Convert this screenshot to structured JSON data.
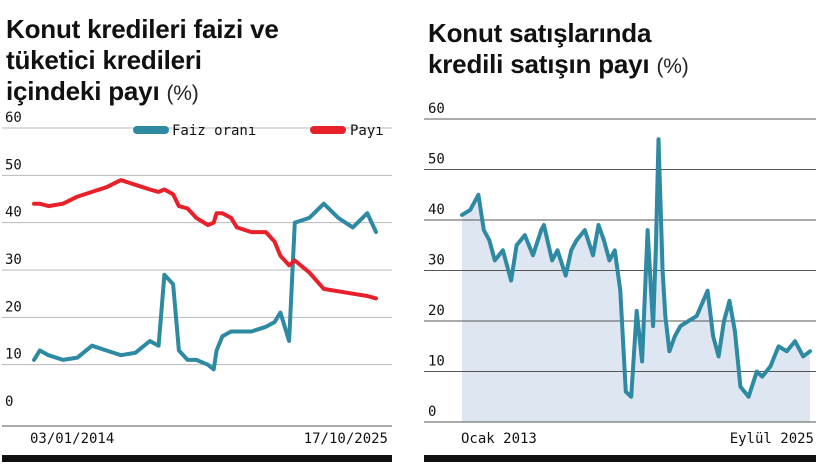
{
  "chart_data": [
    {
      "type": "line",
      "title": "Konut kredileri faizi ve tüketici kredileri içindeki payı",
      "title_lines": [
        "Konut kredileri faizi ve",
        "tüketici kredileri",
        "içindeki payı"
      ],
      "unit": "(%)",
      "x_labels": [
        "03/01/2014",
        "17/10/2025"
      ],
      "y_ticks": [
        "60",
        "50",
        "40",
        "30",
        "20",
        "10",
        "0"
      ],
      "ylim": [
        0,
        60
      ],
      "grid": true,
      "legend_position": "top-right",
      "x": [
        2014.0,
        2014.2,
        2014.5,
        2015.0,
        2015.5,
        2016.0,
        2016.5,
        2017.0,
        2017.5,
        2018.0,
        2018.3,
        2018.5,
        2018.8,
        2019.0,
        2019.3,
        2019.6,
        2020.0,
        2020.2,
        2020.3,
        2020.5,
        2020.8,
        2021.0,
        2021.5,
        2022.0,
        2022.3,
        2022.5,
        2022.8,
        2023.0,
        2023.5,
        2024.0,
        2024.5,
        2025.0,
        2025.5,
        2025.8
      ],
      "series": [
        {
          "name": "Faiz oranı",
          "color": "#2e8aa3",
          "values": [
            11,
            13,
            12,
            11,
            11.5,
            14,
            13,
            12,
            12.5,
            15,
            14,
            29,
            27,
            13,
            11,
            11,
            10,
            9,
            13,
            16,
            17,
            17,
            17,
            18,
            19,
            21,
            15,
            40,
            41,
            44,
            41,
            39,
            42,
            38
          ]
        },
        {
          "name": "Payı",
          "color": "#e8202a",
          "values": [
            44,
            44,
            43.5,
            44,
            45.5,
            46.5,
            47.5,
            49,
            48,
            47,
            46.5,
            47,
            46,
            43.5,
            43,
            41,
            39.5,
            40,
            42,
            42,
            41,
            39,
            38,
            38,
            36,
            33,
            31,
            32,
            29.5,
            26,
            25.5,
            25,
            24.5,
            24
          ]
        }
      ]
    },
    {
      "type": "area",
      "title": "Konut satışlarında kredili satışın payı",
      "title_lines": [
        "Konut satışlarında",
        "kredili satışın payı"
      ],
      "unit": "(%)",
      "x_labels": [
        "Ocak 2013",
        "Eylül 2025"
      ],
      "y_ticks": [
        "60",
        "50",
        "40",
        "30",
        "20",
        "10",
        "0"
      ],
      "ylim": [
        0,
        60
      ],
      "grid": true,
      "colors": {
        "line": "#2e8aa3",
        "fill": "#dde6f1"
      },
      "x": [
        2013.0,
        2013.3,
        2013.6,
        2013.8,
        2014.0,
        2014.2,
        2014.5,
        2014.8,
        2015.0,
        2015.3,
        2015.6,
        2015.9,
        2016.0,
        2016.3,
        2016.5,
        2016.8,
        2017.0,
        2017.2,
        2017.5,
        2017.8,
        2018.0,
        2018.2,
        2018.4,
        2018.6,
        2018.8,
        2019.0,
        2019.2,
        2019.4,
        2019.6,
        2019.8,
        2020.0,
        2020.1,
        2020.2,
        2020.35,
        2020.45,
        2020.6,
        2020.8,
        2021.0,
        2021.3,
        2021.6,
        2022.0,
        2022.2,
        2022.4,
        2022.6,
        2022.8,
        2023.0,
        2023.2,
        2023.5,
        2023.8,
        2024.0,
        2024.3,
        2024.6,
        2024.9,
        2025.2,
        2025.5,
        2025.75
      ],
      "values": [
        41,
        42,
        45,
        38,
        36,
        32,
        34,
        28,
        35,
        37,
        33,
        38,
        39,
        32,
        34,
        29,
        34,
        36,
        38,
        33,
        39,
        36,
        32,
        34,
        26,
        6,
        5,
        22,
        12,
        38,
        19,
        34,
        56,
        30,
        21,
        14,
        17,
        19,
        20,
        21,
        26,
        17,
        13,
        20,
        24,
        18,
        7,
        5,
        10,
        9,
        11,
        15,
        14,
        16,
        13,
        14
      ]
    }
  ],
  "legend": {
    "faiz_label": "Faiz oranı",
    "pay_label": "Payı"
  }
}
